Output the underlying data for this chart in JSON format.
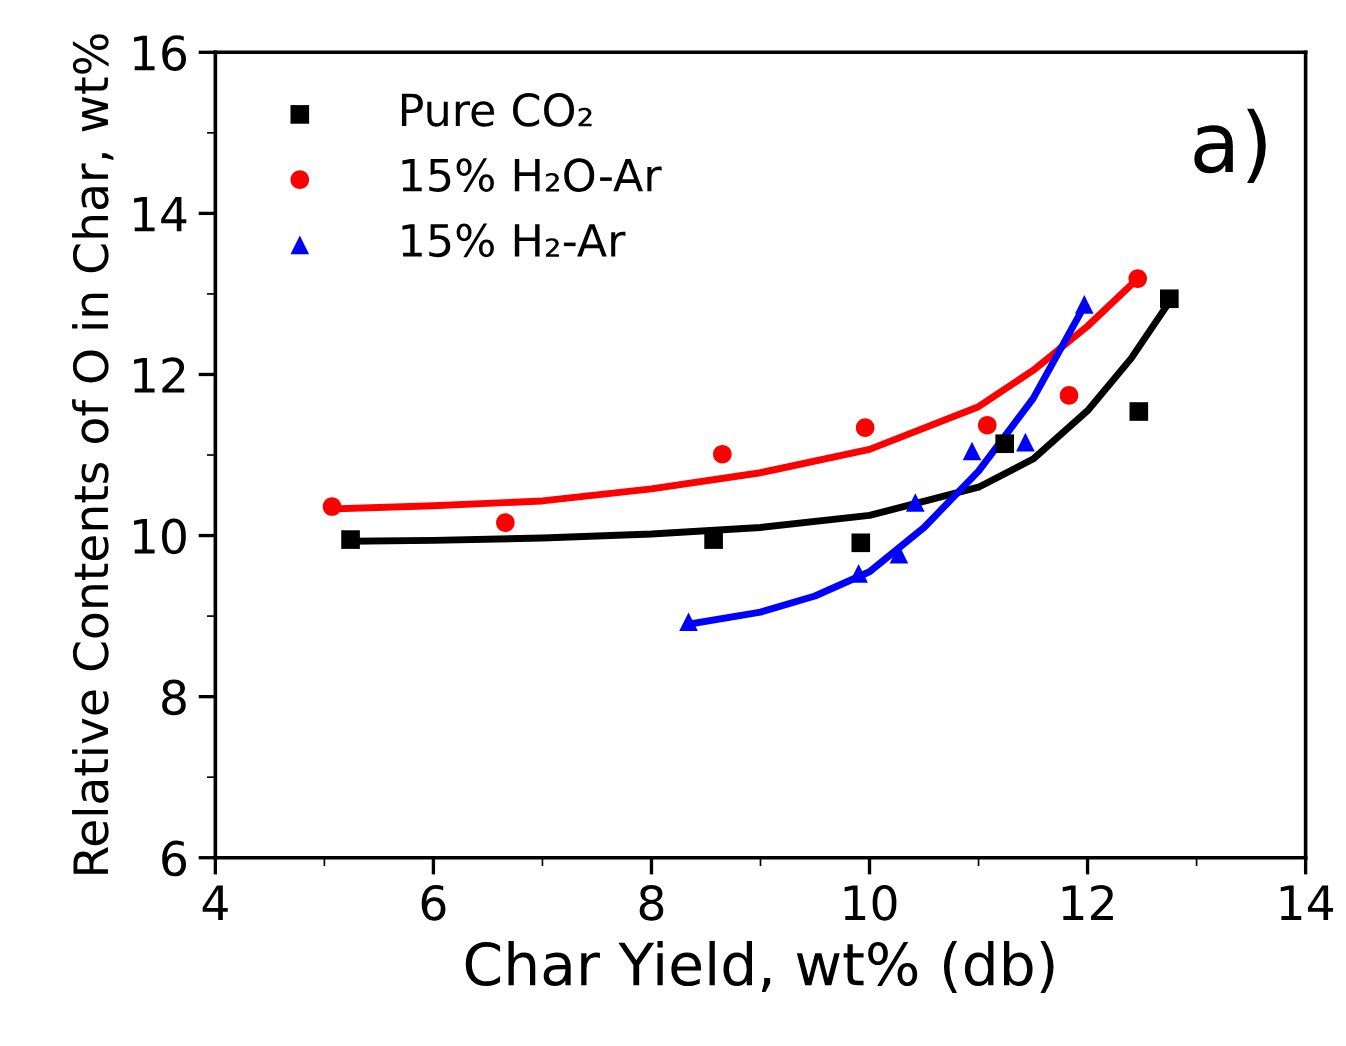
{
  "chart_data": {
    "type": "scatter",
    "xlabel": "Char Yield, wt% (db)",
    "ylabel": "Relative Contents of O in Char, wt%",
    "annotations": [
      "a)"
    ],
    "xlim": [
      4,
      14
    ],
    "ylim": [
      6,
      16
    ],
    "xticks": [
      4,
      6,
      8,
      10,
      12,
      14
    ],
    "yticks": [
      6,
      8,
      10,
      12,
      14,
      16
    ],
    "grid": false,
    "legend": "top left",
    "series": [
      {
        "name": "Pure CO₂",
        "color": "#000000",
        "marker": "square",
        "x": [
          5.24,
          8.57,
          9.92,
          11.24,
          12.47,
          12.75
        ],
        "values": [
          9.95,
          9.95,
          9.91,
          11.14,
          11.54,
          12.94
        ]
      },
      {
        "name": "15% H₂O-Ar",
        "color": "#ff0000",
        "marker": "circle",
        "x": [
          5.07,
          6.66,
          8.65,
          9.96,
          11.08,
          11.83,
          12.46
        ],
        "values": [
          10.36,
          10.16,
          11.01,
          11.34,
          11.37,
          11.74,
          13.19
        ]
      },
      {
        "name": "15% H₂-Ar",
        "color": "#0000ff",
        "marker": "triangle",
        "x": [
          8.34,
          9.9,
          10.27,
          10.42,
          10.94,
          11.43,
          11.97
        ],
        "values": [
          8.93,
          9.53,
          9.77,
          10.41,
          11.05,
          11.16,
          12.87
        ]
      },
      {
        "type": "line",
        "color": "#000000",
        "marker": "none",
        "x": [
          5.24,
          6,
          7,
          8,
          9,
          10,
          11,
          11.5,
          12,
          12.4,
          12.75
        ],
        "values": [
          9.93,
          9.94,
          9.97,
          10.02,
          10.1,
          10.25,
          10.6,
          10.95,
          11.55,
          12.2,
          12.9
        ]
      },
      {
        "type": "line",
        "color": "#ff0000",
        "marker": "none",
        "x": [
          5.07,
          6,
          7,
          8,
          9,
          10,
          11,
          11.5,
          12,
          12.46
        ],
        "values": [
          10.33,
          10.37,
          10.43,
          10.58,
          10.78,
          11.07,
          11.6,
          12.05,
          12.6,
          13.19
        ]
      },
      {
        "type": "line",
        "color": "#0000ff",
        "marker": "none",
        "x": [
          8.34,
          9,
          9.5,
          10,
          10.5,
          11,
          11.5,
          11.97
        ],
        "values": [
          8.9,
          9.05,
          9.25,
          9.55,
          10.1,
          10.8,
          11.7,
          12.85
        ]
      }
    ]
  }
}
